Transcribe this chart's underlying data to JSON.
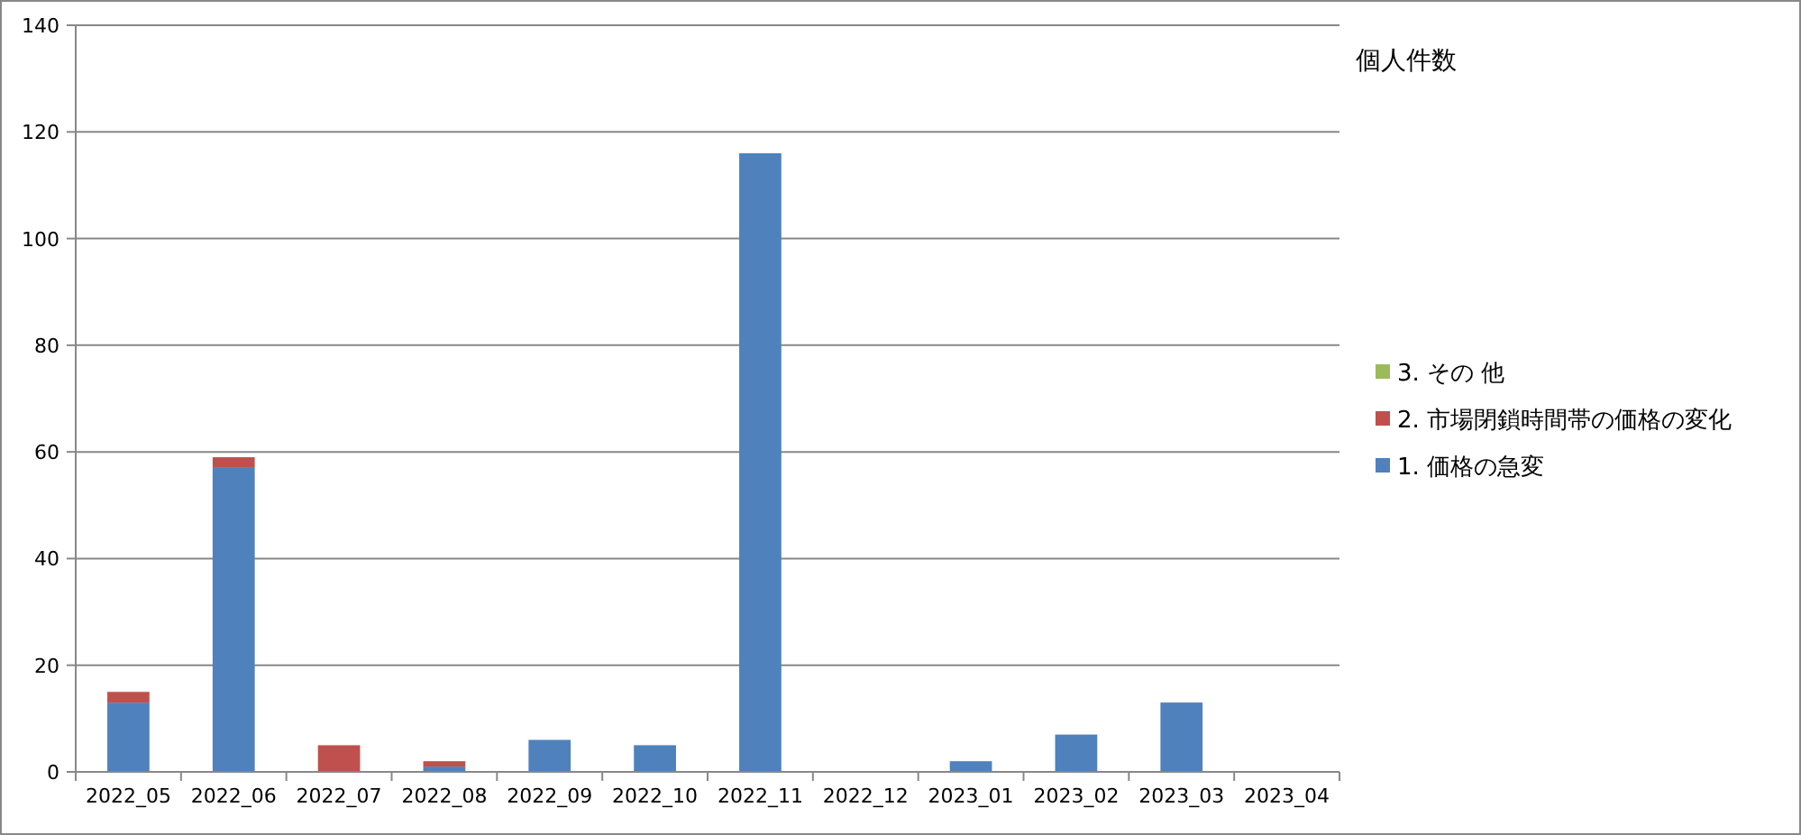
{
  "chart_data": {
    "type": "bar",
    "title": "個人件数",
    "stacked": true,
    "categories": [
      "2022_05",
      "2022_06",
      "2022_07",
      "2022_08",
      "2022_09",
      "2022_10",
      "2022_11",
      "2022_12",
      "2023_01",
      "2023_02",
      "2023_03",
      "2023_04"
    ],
    "series": [
      {
        "name": "1. 価格の急変",
        "color": "#4f81bd",
        "values": [
          13,
          57,
          0,
          1,
          6,
          5,
          116,
          0,
          2,
          7,
          13,
          0
        ]
      },
      {
        "name": "2. 市場閉鎖時間帯の価格の変化",
        "color": "#c0504d",
        "values": [
          2,
          2,
          5,
          1,
          0,
          0,
          0,
          0,
          0,
          0,
          0,
          0
        ]
      },
      {
        "name": "3. その 他",
        "color": "#9bbb59",
        "values": [
          0,
          0,
          0,
          0,
          0,
          0,
          0,
          0,
          0,
          0,
          0,
          0
        ]
      }
    ],
    "ylim": [
      0,
      140
    ],
    "yticks": [
      0,
      20,
      40,
      60,
      80,
      100,
      120,
      140
    ],
    "grid": "y",
    "legend": "right"
  }
}
